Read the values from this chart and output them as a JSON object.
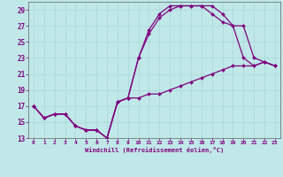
{
  "xlabel": "Windchill (Refroidissement éolien,°C)",
  "xlim": [
    -0.5,
    23.5
  ],
  "ylim": [
    13,
    30
  ],
  "yticks": [
    13,
    15,
    17,
    19,
    21,
    23,
    25,
    27,
    29
  ],
  "xticks": [
    0,
    1,
    2,
    3,
    4,
    5,
    6,
    7,
    8,
    9,
    10,
    11,
    12,
    13,
    14,
    15,
    16,
    17,
    18,
    19,
    20,
    21,
    22,
    23
  ],
  "background_color": "#c0e8e8",
  "grid_color": "#a8d8d8",
  "line_color": "#800080",
  "curve1_x": [
    0,
    1,
    2,
    3,
    4,
    5,
    6,
    7,
    8,
    9,
    10,
    11,
    12,
    13,
    14,
    15,
    16,
    17,
    18,
    19,
    20,
    21,
    22,
    23
  ],
  "curve1_y": [
    17,
    15.5,
    16,
    16,
    14.5,
    14,
    14,
    13,
    17.5,
    18,
    18,
    18.5,
    18.5,
    19,
    19.5,
    20,
    20.5,
    21,
    21.5,
    22,
    22,
    22,
    22.5,
    22
  ],
  "curve2_x": [
    0,
    1,
    2,
    3,
    4,
    5,
    6,
    7,
    8,
    9,
    10,
    11,
    12,
    13,
    14,
    15,
    16,
    17,
    18,
    19,
    20,
    21,
    22,
    23
  ],
  "curve2_y": [
    17,
    15.5,
    16,
    16,
    14.5,
    14,
    14,
    13,
    17.5,
    18,
    23,
    26.5,
    28.5,
    29.5,
    29.5,
    29.5,
    29.5,
    29.5,
    28.5,
    27,
    23,
    22,
    22.5,
    22
  ],
  "curve3_x": [
    0,
    1,
    2,
    3,
    4,
    5,
    6,
    7,
    8,
    9,
    10,
    11,
    12,
    13,
    14,
    15,
    16,
    17,
    18,
    19,
    20,
    21,
    22,
    23
  ],
  "curve3_y": [
    17,
    15.5,
    16,
    16,
    14.5,
    14,
    14,
    13,
    17.5,
    18,
    23,
    26,
    28,
    29,
    29.5,
    29.5,
    29.5,
    28.5,
    27.5,
    27,
    27,
    23,
    22.5,
    22
  ]
}
